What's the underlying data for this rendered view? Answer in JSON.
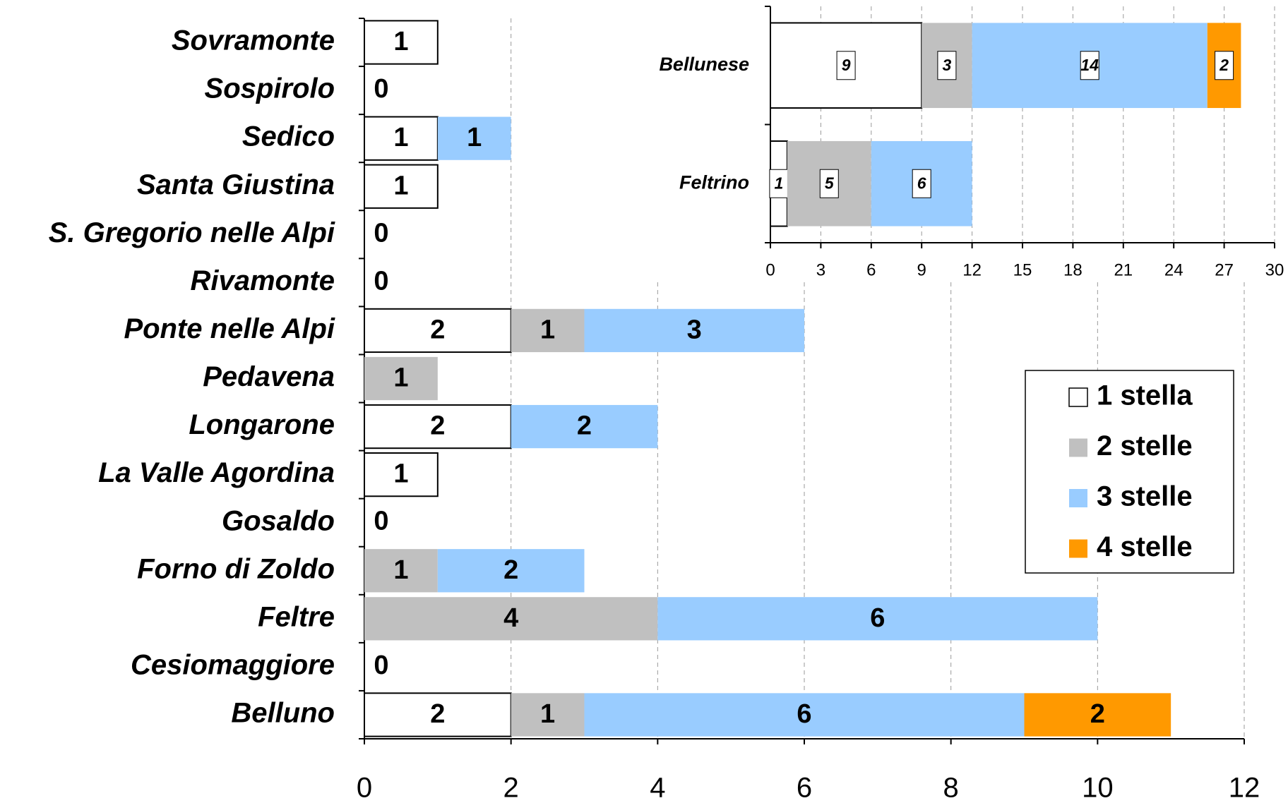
{
  "chart_data": [
    {
      "type": "bar",
      "orientation": "horizontal",
      "stacked": true,
      "categories": [
        "Sovramonte",
        "Sospirolo",
        "Sedico",
        "Santa Giustina",
        "S. Gregorio nelle Alpi",
        "Rivamonte",
        "Ponte nelle Alpi",
        "Pedavena",
        "Longarone",
        "La Valle Agordina",
        "Gosaldo",
        "Forno di Zoldo",
        "Feltre",
        "Cesiomaggiore",
        "Belluno"
      ],
      "series": [
        {
          "name": "1 stella",
          "color": "#ffffff",
          "values": [
            1,
            0,
            1,
            1,
            0,
            0,
            2,
            0,
            2,
            1,
            0,
            0,
            0,
            0,
            2
          ]
        },
        {
          "name": "2 stelle",
          "color": "#c0c0c0",
          "values": [
            0,
            0,
            0,
            0,
            0,
            0,
            1,
            1,
            0,
            0,
            0,
            1,
            4,
            0,
            1
          ]
        },
        {
          "name": "3 stelle",
          "color": "#99ccff",
          "values": [
            0,
            0,
            1,
            0,
            0,
            0,
            3,
            0,
            2,
            0,
            0,
            2,
            6,
            0,
            6
          ]
        },
        {
          "name": "4 stelle",
          "color": "#ff9900",
          "values": [
            0,
            0,
            0,
            0,
            0,
            0,
            0,
            0,
            0,
            0,
            0,
            0,
            0,
            0,
            2
          ]
        }
      ],
      "xlim": [
        0,
        12
      ],
      "xticks": [
        0,
        2,
        4,
        6,
        8,
        10,
        12
      ],
      "grid": true,
      "legend": "right"
    },
    {
      "type": "bar",
      "orientation": "horizontal",
      "stacked": true,
      "categories": [
        "Bellunese",
        "Feltrino"
      ],
      "series": [
        {
          "color": "#ffffff",
          "values": [
            9,
            1
          ]
        },
        {
          "color": "#c0c0c0",
          "values": [
            3,
            5
          ]
        },
        {
          "color": "#99ccff",
          "values": [
            14,
            6
          ]
        },
        {
          "color": "#ff9900",
          "values": [
            2,
            0
          ]
        }
      ],
      "xlim": [
        0,
        30
      ],
      "xticks": [
        0,
        3,
        6,
        9,
        12,
        15,
        18,
        21,
        24,
        27,
        30
      ],
      "grid": true
    }
  ]
}
